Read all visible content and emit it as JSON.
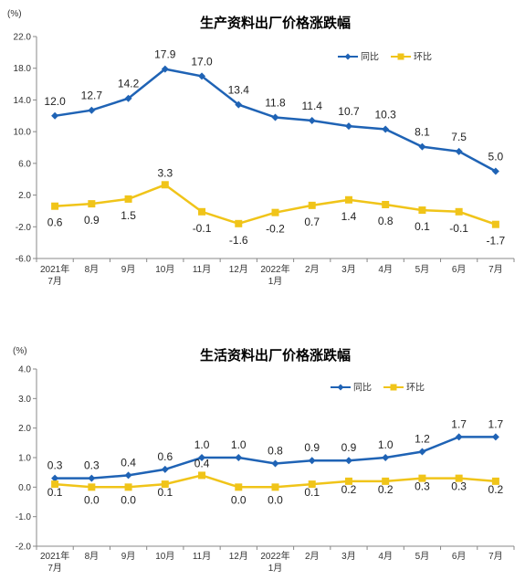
{
  "colors": {
    "yoy": "#1f63b5",
    "mom": "#f0c419",
    "axis": "#888888"
  },
  "chart_data": [
    {
      "type": "line",
      "title": "生产资料出厂价格涨跌幅",
      "unit": "(%)",
      "categories": [
        [
          "2021年",
          "7月"
        ],
        [
          "8月"
        ],
        [
          "9月"
        ],
        [
          "10月"
        ],
        [
          "11月"
        ],
        [
          "12月"
        ],
        [
          "2022年",
          "1月"
        ],
        [
          "2月"
        ],
        [
          "3月"
        ],
        [
          "4月"
        ],
        [
          "5月"
        ],
        [
          "6月"
        ],
        [
          "7月"
        ]
      ],
      "ylim": [
        -6.0,
        22.0
      ],
      "yticks": [
        "22.0",
        "18.0",
        "14.0",
        "10.0",
        "6.0",
        "2.0",
        "-2.0",
        "-6.0"
      ],
      "series": [
        {
          "name": "同比",
          "values": [
            12.0,
            12.7,
            14.2,
            17.9,
            17.0,
            13.4,
            11.8,
            11.4,
            10.7,
            10.3,
            8.1,
            7.5,
            5.0
          ],
          "labels": [
            "12.0",
            "12.7",
            "14.2",
            "17.9",
            "17.0",
            "13.4",
            "11.8",
            "11.4",
            "10.7",
            "10.3",
            "8.1",
            "7.5",
            "5.0"
          ]
        },
        {
          "name": "环比",
          "values": [
            0.6,
            0.9,
            1.5,
            3.3,
            -0.1,
            -1.6,
            -0.2,
            0.7,
            1.4,
            0.8,
            0.1,
            -0.1,
            -1.7
          ],
          "labels": [
            "0.6",
            "0.9",
            "1.5",
            "3.3",
            "-0.1",
            "-1.6",
            "-0.2",
            "0.7",
            "1.4",
            "0.8",
            "0.1",
            "-0.1",
            "-1.7"
          ]
        }
      ]
    },
    {
      "type": "line",
      "title": "生活资料出厂价格涨跌幅",
      "unit": "(%)",
      "categories": [
        [
          "2021年",
          "7月"
        ],
        [
          "8月"
        ],
        [
          "9月"
        ],
        [
          "10月"
        ],
        [
          "11月"
        ],
        [
          "12月"
        ],
        [
          "2022年",
          "1月"
        ],
        [
          "2月"
        ],
        [
          "3月"
        ],
        [
          "4月"
        ],
        [
          "5月"
        ],
        [
          "6月"
        ],
        [
          "7月"
        ]
      ],
      "ylim": [
        -2.0,
        4.0
      ],
      "yticks": [
        "4.0",
        "3.0",
        "2.0",
        "1.0",
        "0.0",
        "-1.0",
        "-2.0"
      ],
      "series": [
        {
          "name": "同比",
          "values": [
            0.3,
            0.3,
            0.4,
            0.6,
            1.0,
            1.0,
            0.8,
            0.9,
            0.9,
            1.0,
            1.2,
            1.7,
            1.7
          ],
          "labels": [
            "0.3",
            "0.3",
            "0.4",
            "0.6",
            "1.0",
            "1.0",
            "0.8",
            "0.9",
            "0.9",
            "1.0",
            "1.2",
            "1.7",
            "1.7"
          ]
        },
        {
          "name": "环比",
          "values": [
            0.1,
            0.0,
            0.0,
            0.1,
            0.4,
            0.0,
            0.0,
            0.1,
            0.2,
            0.2,
            0.3,
            0.3,
            0.2
          ],
          "labels": [
            "0.1",
            "0.0",
            "0.0",
            "0.1",
            "0.4",
            "0.0",
            "0.0",
            "0.1",
            "0.2",
            "0.2",
            "0.3",
            "0.3",
            "0.2"
          ]
        }
      ]
    }
  ]
}
